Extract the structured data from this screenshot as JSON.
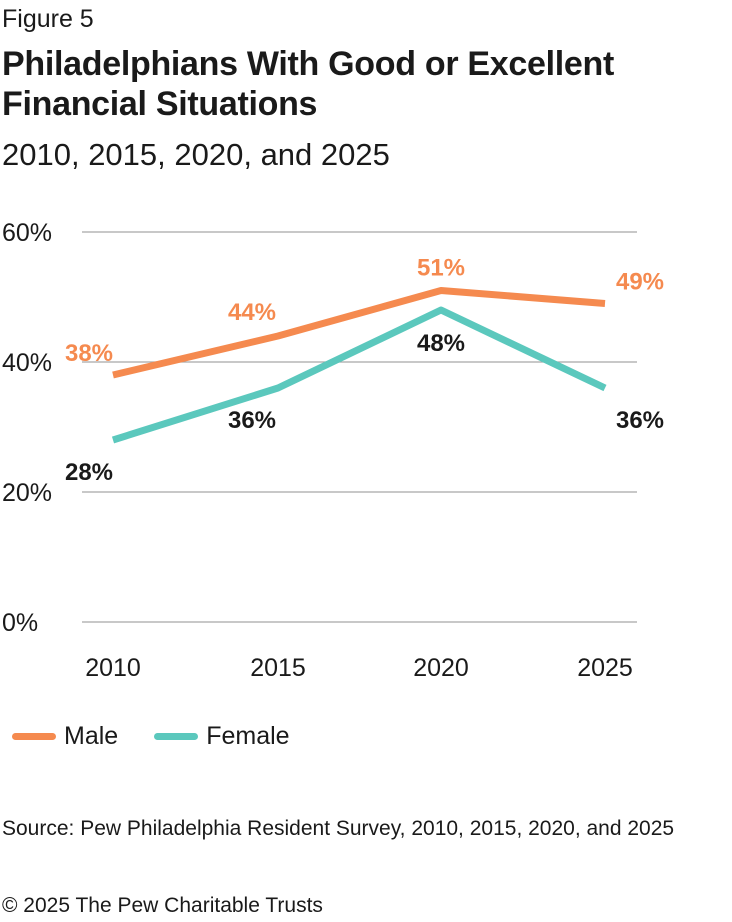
{
  "header": {
    "figure_label": "Figure 5",
    "title": "Philadelphians With Good or Excellent Financial Situations",
    "subtitle": "2010, 2015, 2020, and 2025"
  },
  "chart_data": {
    "type": "line",
    "title": "Philadelphians With Good or Excellent Financial Situations",
    "subtitle": "2010, 2015, 2020, and 2025",
    "categories": [
      "2010",
      "2015",
      "2020",
      "2025"
    ],
    "y_ticks": [
      "0%",
      "20%",
      "40%",
      "60%"
    ],
    "y_tick_values": [
      0,
      20,
      40,
      60
    ],
    "ylim": [
      0,
      60
    ],
    "grid": true,
    "legend_position": "bottom-left",
    "series": [
      {
        "name": "Male",
        "color": "#f58a4f",
        "values": [
          38,
          44,
          51,
          49
        ],
        "labels": [
          "38%",
          "44%",
          "51%",
          "49%"
        ]
      },
      {
        "name": "Female",
        "color": "#5bc8bd",
        "values": [
          28,
          36,
          48,
          36
        ],
        "labels": [
          "28%",
          "36%",
          "48%",
          "36%"
        ]
      }
    ]
  },
  "legend": {
    "items": [
      {
        "label": "Male",
        "color": "#f58a4f"
      },
      {
        "label": "Female",
        "color": "#5bc8bd"
      }
    ]
  },
  "footer": {
    "source": "Source: Pew Philadelphia Resident Survey, 2010, 2015, 2020, and 2025",
    "copyright": "© 2025 The Pew Charitable Trusts"
  }
}
